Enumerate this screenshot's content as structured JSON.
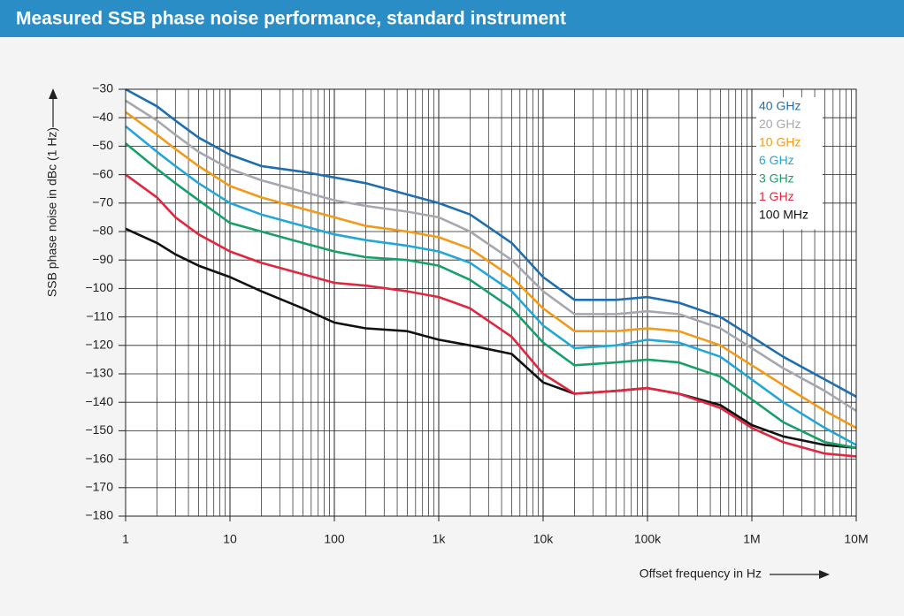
{
  "chart_data": {
    "type": "line",
    "title": "Measured SSB phase noise performance, standard instrument",
    "x_label": "Offset frequency in Hz",
    "y_label": "SSB phase noise in dBc (1 Hz)",
    "x_scale": "log",
    "grid": true,
    "legend": "top-right",
    "x": [
      1,
      2,
      3,
      5,
      10,
      20,
      50,
      100,
      200,
      500,
      1000,
      2000,
      5000,
      10000,
      20000,
      50000,
      100000,
      200000,
      500000,
      1000000,
      2000000,
      5000000,
      10000000
    ],
    "series": [
      {
        "name": "40 GHz",
        "color": "#1f6fb0",
        "values": [
          -30,
          -36,
          -41,
          -47,
          -53,
          -57,
          -59,
          -61,
          -63,
          -67,
          -70,
          -74,
          -84,
          -96,
          -104,
          -104,
          -103,
          -105,
          -110,
          -117,
          -124,
          -132,
          -138
        ]
      },
      {
        "name": "20 GHz",
        "color": "#a5a8ae",
        "values": [
          -34,
          -41,
          -46,
          -52,
          -58,
          -62,
          -66,
          -69,
          -71,
          -73,
          -75,
          -80,
          -90,
          -101,
          -109,
          -109,
          -108,
          -109,
          -114,
          -121,
          -128,
          -136,
          -143
        ]
      },
      {
        "name": "10 GHz",
        "color": "#f29a1a",
        "values": [
          -38,
          -46,
          -51,
          -57,
          -64,
          -68,
          -72,
          -75,
          -78,
          -80,
          -82,
          -86,
          -96,
          -107,
          -115,
          -115,
          -114,
          -115,
          -120,
          -127,
          -134,
          -143,
          -149
        ]
      },
      {
        "name": "6 GHz",
        "color": "#22a7d6",
        "values": [
          -43,
          -52,
          -57,
          -63,
          -70,
          -74,
          -78,
          -81,
          -83,
          -85,
          -87,
          -91,
          -101,
          -113,
          -121,
          -120,
          -118,
          -119,
          -124,
          -132,
          -140,
          -149,
          -155
        ]
      },
      {
        "name": "3 GHz",
        "color": "#18a06a",
        "values": [
          -49,
          -58,
          -63,
          -69,
          -77,
          -80,
          -84,
          -87,
          -89,
          -90,
          -92,
          -97,
          -107,
          -119,
          -127,
          -126,
          -125,
          -126,
          -131,
          -139,
          -147,
          -154,
          -156
        ]
      },
      {
        "name": "1 GHz",
        "color": "#e0273f",
        "values": [
          -60,
          -68,
          -75,
          -81,
          -87,
          -91,
          -95,
          -98,
          -99,
          -101,
          -103,
          -107,
          -117,
          -130,
          -137,
          -136,
          -135,
          -137,
          -142,
          -149,
          -154,
          -158,
          -159
        ]
      },
      {
        "name": "100 MHz",
        "color": "#111111",
        "values": [
          -79,
          -84,
          -88,
          -92,
          -96,
          -101,
          -107,
          -112,
          -114,
          -115,
          -118,
          -120,
          -123,
          -133,
          -137,
          -136,
          -135,
          -137,
          -141,
          -148,
          -152,
          -155,
          -156
        ]
      }
    ],
    "xlim": [
      1,
      10000000
    ],
    "xticks": [
      1,
      10,
      100,
      {
        "value": 1000,
        "label": "1k"
      },
      {
        "value": 10000,
        "label": "10k"
      },
      {
        "value": 100000,
        "label": "100k"
      },
      {
        "value": 1000000,
        "label": "1M"
      },
      {
        "value": 10000000,
        "label": "10M"
      }
    ],
    "x_minor_ticks": [
      2,
      3,
      4,
      5,
      6,
      7,
      8,
      9,
      20,
      30,
      40,
      50,
      60,
      70,
      80,
      90,
      200,
      300,
      400,
      500,
      600,
      700,
      800,
      900,
      2000,
      3000,
      4000,
      5000,
      6000,
      7000,
      8000,
      9000,
      20000,
      30000,
      40000,
      50000,
      60000,
      70000,
      80000,
      90000,
      200000,
      300000,
      400000,
      500000,
      600000,
      700000,
      800000,
      900000,
      2000000,
      3000000,
      4000000,
      5000000,
      6000000,
      7000000,
      8000000,
      9000000
    ],
    "ylim": [
      -180,
      -30
    ],
    "yticks": [
      {
        "value": -30,
        "label": "−30"
      },
      {
        "value": -40,
        "label": "−40"
      },
      {
        "value": -50,
        "label": "−50"
      },
      {
        "value": -60,
        "label": "−60"
      },
      {
        "value": -70,
        "label": "−70"
      },
      {
        "value": -80,
        "label": "−80"
      },
      {
        "value": -90,
        "label": "−90"
      },
      {
        "value": -100,
        "label": "−100"
      },
      {
        "value": -110,
        "label": "−110"
      },
      {
        "value": -120,
        "label": "−120"
      },
      {
        "value": -130,
        "label": "−130"
      },
      {
        "value": -140,
        "label": "−140"
      },
      {
        "value": -150,
        "label": "−150"
      },
      {
        "value": -160,
        "label": "−160"
      },
      {
        "value": -170,
        "label": "−170"
      },
      {
        "value": -180,
        "label": "−180"
      }
    ]
  }
}
